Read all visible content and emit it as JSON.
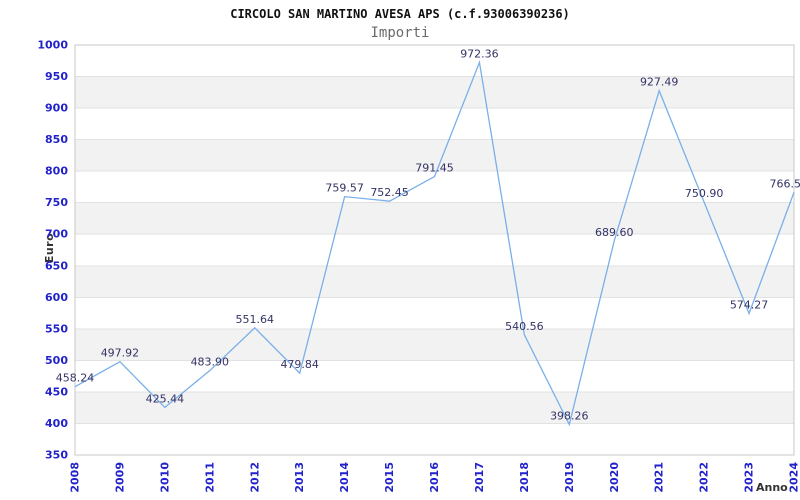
{
  "header": {
    "title": "CIRCOLO SAN MARTINO AVESA APS (c.f.93006390236)",
    "subtitle": "Importi"
  },
  "chart_data": {
    "type": "line",
    "title": "CIRCOLO SAN MARTINO AVESA APS (c.f.93006390236)",
    "subtitle": "Importi",
    "xlabel": "Anno",
    "ylabel": "Euro",
    "categories": [
      2008,
      2009,
      2010,
      2011,
      2012,
      2013,
      2014,
      2015,
      2016,
      2017,
      2018,
      2019,
      2020,
      2021,
      2022,
      2023,
      2024
    ],
    "series": [
      {
        "name": "Importi",
        "values": [
          458.24,
          497.92,
          425.44,
          483.9,
          551.64,
          479.84,
          759.57,
          752.45,
          791.45,
          972.36,
          540.56,
          398.26,
          689.6,
          927.49,
          750.9,
          574.27,
          766.5
        ]
      }
    ],
    "point_labels": [
      "458.24",
      "497.92",
      "425.44",
      "483.90",
      "551.64",
      "479.84",
      "759.57",
      "752.45",
      "791.45",
      "972.36",
      "540.56",
      "398.26",
      "689.60",
      "927.49",
      "750.90",
      "574.27",
      "766.5"
    ],
    "ylim": [
      350,
      1000
    ],
    "ytick_step": 50,
    "ytick_labels": [
      "350",
      "400",
      "450",
      "500",
      "550",
      "600",
      "650",
      "700",
      "750",
      "800",
      "850",
      "900",
      "950",
      "1000"
    ],
    "grid": "alternating-horizontal-bands",
    "legend_position": "none",
    "colors": {
      "line": "#7aafe9",
      "tick_label": "#2222cc",
      "point_label": "#333366",
      "band": "#f2f2f2",
      "gridline": "#e2e2e2",
      "plot_border": "#c8c8c8",
      "title": "#111111",
      "subtitle": "#6b6b6b",
      "axis_title": "#333333",
      "background": "#ffffff"
    }
  }
}
